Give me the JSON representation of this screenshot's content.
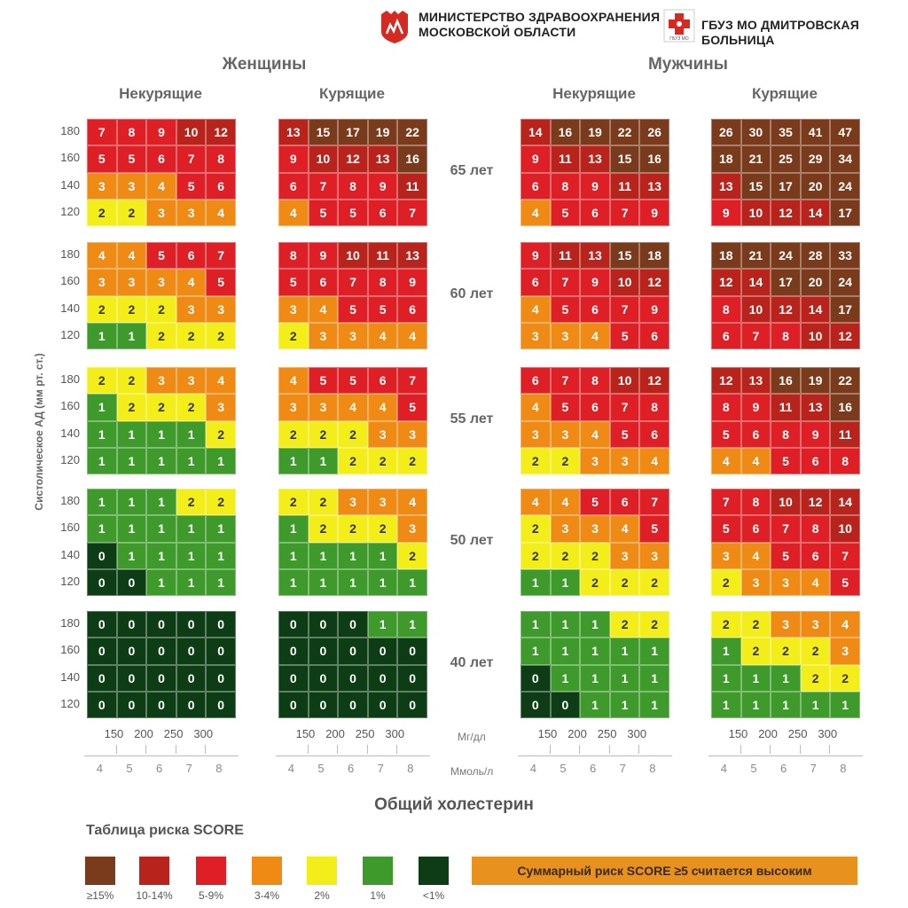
{
  "header": {
    "ministry_line1": "МИНИСТЕРСТВО ЗДРАВООХРАНЕНИЯ",
    "ministry_line2": "МОСКОВСКОЙ ОБЛАСТИ",
    "hospital": "ГБУЗ МО ДМИТРОВСКАЯ БОЛЬНИЦА",
    "hospital_logo_text": "ГБУЗ МО"
  },
  "colors": {
    "c15": "#7a3b1c",
    "c10": "#b8241b",
    "c5": "#df1f26",
    "c3": "#ef8a14",
    "c2": "#f3ee1a",
    "c1": "#3e9a2b",
    "c0": "#0d3d14"
  },
  "chart_data": {
    "type": "heatmap",
    "title": "Таблица риска SCORE",
    "ylabel": "Систолическое АД (мм рт. ст.)",
    "xlabel": "Общий холестерин",
    "sexes": [
      "Женщины",
      "Мужчины"
    ],
    "groups": [
      "Некурящие",
      "Курящие"
    ],
    "ages": [
      "65 лет",
      "60 лет",
      "55 лет",
      "50 лет",
      "40 лет"
    ],
    "bp_levels": [
      "180",
      "160",
      "140",
      "120"
    ],
    "chol_mgdl": [
      "150",
      "200",
      "250",
      "300"
    ],
    "chol_mmol": [
      "4",
      "5",
      "6",
      "7",
      "8"
    ],
    "unit_mgdl": "Мг/дл",
    "unit_mmol": "Ммоль/л",
    "panels": [
      {
        "sex": "Женщины",
        "group": "Некурящие",
        "age": "65 лет",
        "values": [
          [
            7,
            8,
            9,
            10,
            12
          ],
          [
            5,
            5,
            6,
            7,
            8
          ],
          [
            3,
            3,
            4,
            5,
            6
          ],
          [
            2,
            2,
            3,
            3,
            4
          ]
        ]
      },
      {
        "sex": "Женщины",
        "group": "Курящие",
        "age": "65 лет",
        "values": [
          [
            13,
            15,
            17,
            19,
            22
          ],
          [
            9,
            10,
            12,
            13,
            16
          ],
          [
            6,
            7,
            8,
            9,
            11
          ],
          [
            4,
            5,
            5,
            6,
            7
          ]
        ]
      },
      {
        "sex": "Мужчины",
        "group": "Некурящие",
        "age": "65 лет",
        "values": [
          [
            14,
            16,
            19,
            22,
            26
          ],
          [
            9,
            11,
            13,
            15,
            16
          ],
          [
            6,
            8,
            9,
            11,
            13
          ],
          [
            4,
            5,
            6,
            7,
            9
          ]
        ]
      },
      {
        "sex": "Мужчины",
        "group": "Курящие",
        "age": "65 лет",
        "values": [
          [
            26,
            30,
            35,
            41,
            47
          ],
          [
            18,
            21,
            25,
            29,
            34
          ],
          [
            13,
            15,
            17,
            20,
            24
          ],
          [
            9,
            10,
            12,
            14,
            17
          ]
        ]
      },
      {
        "sex": "Женщины",
        "group": "Некурящие",
        "age": "60 лет",
        "values": [
          [
            4,
            4,
            5,
            6,
            7
          ],
          [
            3,
            3,
            3,
            4,
            5
          ],
          [
            2,
            2,
            2,
            3,
            3
          ],
          [
            1,
            1,
            2,
            2,
            2
          ]
        ]
      },
      {
        "sex": "Женщины",
        "group": "Курящие",
        "age": "60 лет",
        "values": [
          [
            8,
            9,
            10,
            11,
            13
          ],
          [
            5,
            6,
            7,
            8,
            9
          ],
          [
            3,
            4,
            5,
            5,
            6
          ],
          [
            2,
            3,
            3,
            4,
            4
          ]
        ]
      },
      {
        "sex": "Мужчины",
        "group": "Некурящие",
        "age": "60 лет",
        "values": [
          [
            9,
            11,
            13,
            15,
            18
          ],
          [
            6,
            7,
            9,
            10,
            12
          ],
          [
            4,
            5,
            6,
            7,
            9
          ],
          [
            3,
            3,
            4,
            5,
            6
          ]
        ]
      },
      {
        "sex": "Мужчины",
        "group": "Курящие",
        "age": "60 лет",
        "values": [
          [
            18,
            21,
            24,
            28,
            33
          ],
          [
            12,
            14,
            17,
            20,
            24
          ],
          [
            8,
            10,
            12,
            14,
            17
          ],
          [
            6,
            7,
            8,
            10,
            12
          ]
        ]
      },
      {
        "sex": "Женщины",
        "group": "Некурящие",
        "age": "55 лет",
        "values": [
          [
            2,
            2,
            3,
            3,
            4
          ],
          [
            1,
            2,
            2,
            2,
            3
          ],
          [
            1,
            1,
            1,
            1,
            2
          ],
          [
            1,
            1,
            1,
            1,
            1
          ]
        ]
      },
      {
        "sex": "Женщины",
        "group": "Курящие",
        "age": "55 лет",
        "values": [
          [
            4,
            5,
            5,
            6,
            7
          ],
          [
            3,
            3,
            4,
            4,
            5
          ],
          [
            2,
            2,
            2,
            3,
            3
          ],
          [
            1,
            1,
            2,
            2,
            2
          ]
        ]
      },
      {
        "sex": "Мужчины",
        "group": "Некурящие",
        "age": "55 лет",
        "values": [
          [
            6,
            7,
            8,
            10,
            12
          ],
          [
            4,
            5,
            6,
            7,
            8
          ],
          [
            3,
            3,
            4,
            5,
            6
          ],
          [
            2,
            2,
            3,
            3,
            4
          ]
        ]
      },
      {
        "sex": "Мужчины",
        "group": "Курящие",
        "age": "55 лет",
        "values": [
          [
            12,
            13,
            16,
            19,
            22
          ],
          [
            8,
            9,
            11,
            13,
            16
          ],
          [
            5,
            6,
            8,
            9,
            11
          ],
          [
            4,
            4,
            5,
            6,
            8
          ]
        ]
      },
      {
        "sex": "Женщины",
        "group": "Некурящие",
        "age": "50 лет",
        "values": [
          [
            1,
            1,
            1,
            2,
            2
          ],
          [
            1,
            1,
            1,
            1,
            1
          ],
          [
            0,
            1,
            1,
            1,
            1
          ],
          [
            0,
            0,
            1,
            1,
            1
          ]
        ]
      },
      {
        "sex": "Женщины",
        "group": "Курящие",
        "age": "50 лет",
        "values": [
          [
            2,
            2,
            3,
            3,
            4
          ],
          [
            1,
            2,
            2,
            2,
            3
          ],
          [
            1,
            1,
            1,
            1,
            2
          ],
          [
            1,
            1,
            1,
            1,
            1
          ]
        ]
      },
      {
        "sex": "Мужчины",
        "group": "Некурящие",
        "age": "50 лет",
        "values": [
          [
            4,
            4,
            5,
            6,
            7
          ],
          [
            2,
            3,
            3,
            4,
            5
          ],
          [
            2,
            2,
            2,
            3,
            3
          ],
          [
            1,
            1,
            2,
            2,
            2
          ]
        ]
      },
      {
        "sex": "Мужчины",
        "group": "Курящие",
        "age": "50 лет",
        "values": [
          [
            7,
            8,
            10,
            12,
            14
          ],
          [
            5,
            6,
            7,
            8,
            10
          ],
          [
            3,
            4,
            5,
            6,
            7
          ],
          [
            2,
            3,
            3,
            4,
            5
          ]
        ]
      },
      {
        "sex": "Женщины",
        "group": "Некурящие",
        "age": "40 лет",
        "values": [
          [
            0,
            0,
            0,
            0,
            0
          ],
          [
            0,
            0,
            0,
            0,
            0
          ],
          [
            0,
            0,
            0,
            0,
            0
          ],
          [
            0,
            0,
            0,
            0,
            0
          ]
        ]
      },
      {
        "sex": "Женщины",
        "group": "Курящие",
        "age": "40 лет",
        "values": [
          [
            0,
            0,
            0,
            1,
            1
          ],
          [
            0,
            0,
            0,
            0,
            0
          ],
          [
            0,
            0,
            0,
            0,
            0
          ],
          [
            0,
            0,
            0,
            0,
            0
          ]
        ]
      },
      {
        "sex": "Мужчины",
        "group": "Некурящие",
        "age": "40 лет",
        "values": [
          [
            1,
            1,
            1,
            2,
            2
          ],
          [
            1,
            1,
            1,
            1,
            1
          ],
          [
            0,
            1,
            1,
            1,
            1
          ],
          [
            0,
            0,
            1,
            1,
            1
          ]
        ]
      },
      {
        "sex": "Мужчины",
        "group": "Курящие",
        "age": "40 лет",
        "values": [
          [
            2,
            2,
            3,
            3,
            4
          ],
          [
            1,
            2,
            2,
            2,
            3
          ],
          [
            1,
            1,
            1,
            2,
            2
          ],
          [
            1,
            1,
            1,
            1,
            1
          ]
        ]
      }
    ],
    "legend": [
      {
        "label": "≥15%",
        "color": "#7a3b1c"
      },
      {
        "label": "10-14%",
        "color": "#b8241b"
      },
      {
        "label": "5-9%",
        "color": "#df1f26"
      },
      {
        "label": "3-4%",
        "color": "#ef8a14"
      },
      {
        "label": "2%",
        "color": "#f3ee1a"
      },
      {
        "label": "1%",
        "color": "#3e9a2b"
      },
      {
        "label": "<1%",
        "color": "#0d3d14"
      }
    ],
    "note": "Суммарный риск SCORE ≥5 считается высоким"
  }
}
